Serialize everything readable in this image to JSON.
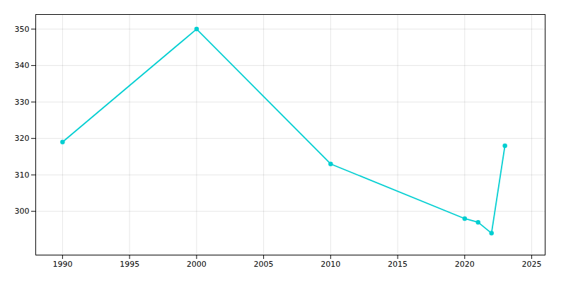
{
  "chart_data": {
    "type": "line",
    "x": [
      1990,
      2000,
      2010,
      2020,
      2021,
      2022,
      2023
    ],
    "values": [
      319,
      350,
      313,
      298,
      297,
      294,
      318
    ],
    "color": "#00CED1",
    "marker": "circle",
    "xlim": [
      1988,
      2026
    ],
    "ylim": [
      288,
      354
    ],
    "xticks": [
      1990,
      1995,
      2000,
      2005,
      2010,
      2015,
      2020,
      2025
    ],
    "yticks": [
      300,
      310,
      320,
      330,
      340,
      350
    ],
    "grid": true
  }
}
